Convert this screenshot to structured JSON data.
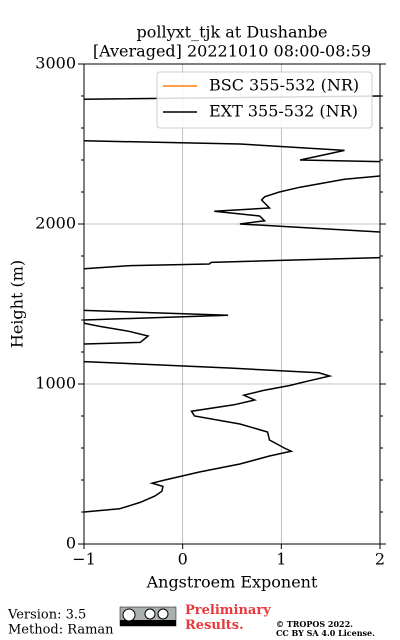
{
  "chart_data": {
    "type": "line",
    "title": [
      "pollyxt_tjk at Dushanbe",
      "[Averaged] 20221010 08:00-08:59"
    ],
    "xlabel": "Angstroem Exponent",
    "ylabel": "Height (m)",
    "xlim": [
      -1,
      2
    ],
    "ylim": [
      0,
      3000
    ],
    "xticks": [
      {
        "value": -1,
        "label": "−1"
      },
      0,
      1,
      2
    ],
    "yticks": [
      0,
      1000,
      2000,
      3000
    ],
    "yminorticks": [
      200,
      400,
      600,
      800,
      1200,
      1400,
      1600,
      1800,
      2200,
      2400,
      2600,
      2800
    ],
    "grid": true,
    "legend": "upper right",
    "series": [
      {
        "name": "BSC 355-532 (NR)",
        "color": "#ff7f0e",
        "x": [],
        "y": []
      },
      {
        "name": "EXT 355-532 (NR)",
        "color": "#000000",
        "y": [
          200,
          220,
          260,
          300,
          330,
          360,
          380,
          400,
          450,
          500,
          550,
          580,
          600,
          650,
          700,
          750,
          800,
          830,
          870,
          900,
          930,
          960,
          990,
          1020,
          1050,
          1070,
          1100,
          1140,
          1200,
          1250,
          1260,
          1300,
          1330,
          1360,
          1380,
          1400,
          1430,
          1460,
          1600,
          1720,
          1740,
          1750,
          1760,
          1790,
          1900,
          1950,
          2000,
          2020,
          2050,
          2080,
          2100,
          2150,
          2170,
          2200,
          2230,
          2280,
          2300,
          2350,
          2390,
          2400,
          2440,
          2460,
          2500,
          2520,
          2700,
          2780,
          2800
        ],
        "x": [
          -1.0,
          -0.64,
          -0.43,
          -0.28,
          -0.21,
          -0.2,
          -0.31,
          -0.18,
          0.17,
          0.58,
          0.88,
          1.1,
          1.03,
          0.88,
          0.86,
          0.58,
          0.12,
          0.09,
          0.52,
          0.73,
          0.62,
          0.82,
          1.08,
          1.28,
          1.49,
          1.38,
          0.47,
          -1.0,
          null,
          -1.0,
          -0.43,
          -0.35,
          -0.55,
          -0.84,
          -1.0,
          -1.0,
          0.46,
          -1.0,
          null,
          -1.0,
          -0.53,
          0.27,
          0.29,
          2.0,
          null,
          2.0,
          0.58,
          0.83,
          0.78,
          0.32,
          0.88,
          0.8,
          0.83,
          0.98,
          1.19,
          1.64,
          2.0,
          null,
          2.0,
          1.19,
          1.49,
          1.64,
          0.58,
          -1.0,
          null,
          -1.0,
          2.0
        ]
      }
    ]
  },
  "footer": {
    "version": "Version: 3.5",
    "method": "Method: Raman",
    "preliminary": "Preliminary Results.",
    "copyright": "© TROPOS 2022.",
    "license": "CC BY SA 4.0 License."
  }
}
